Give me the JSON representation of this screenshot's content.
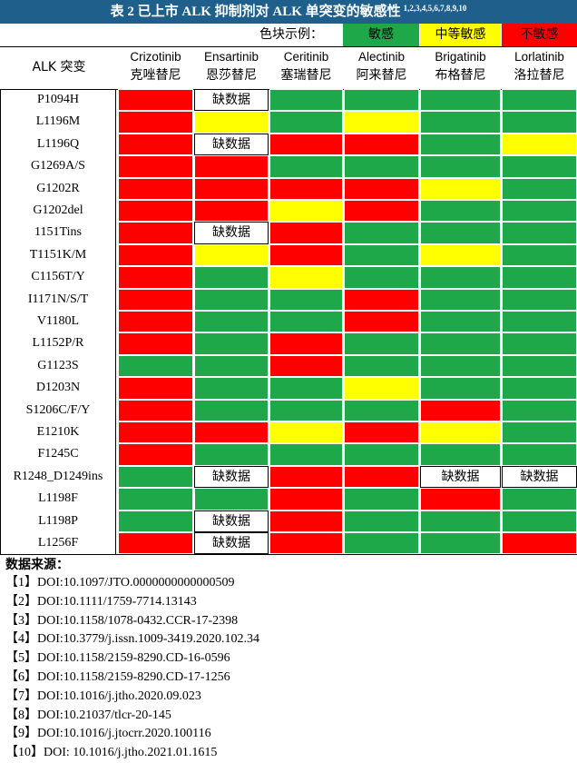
{
  "title": {
    "text": "表 2  已上市 ALK 抑制剂对 ALK 单突变的敏感性",
    "refs": "1,2,3,4,5,6,7,8,9,10"
  },
  "legend": {
    "label": "色块示例：",
    "items": [
      {
        "label": "敏感",
        "color": "#1ea84a"
      },
      {
        "label": "中等敏感",
        "color": "#ffff00"
      },
      {
        "label": "不敏感",
        "color": "#ff0000"
      }
    ]
  },
  "colors": {
    "G": "#1ea84a",
    "Y": "#ffff00",
    "R": "#ff0000",
    "W": "#ffffff"
  },
  "header": {
    "mutation_col": "ALK 突变",
    "drugs": [
      {
        "en": "Crizotinib",
        "cn": "克唑替尼"
      },
      {
        "en": "Ensartinib",
        "cn": "恩莎替尼"
      },
      {
        "en": "Ceritinib",
        "cn": "塞瑞替尼"
      },
      {
        "en": "Alectinib",
        "cn": "阿来替尼"
      },
      {
        "en": "Brigatinib",
        "cn": "布格替尼"
      },
      {
        "en": "Lorlatinib",
        "cn": "洛拉替尼"
      }
    ]
  },
  "no_data_text": "缺数据",
  "rows": [
    {
      "mutation": "P1094H",
      "cells": [
        "R",
        "W",
        "G",
        "G",
        "G",
        "G"
      ]
    },
    {
      "mutation": "L1196M",
      "cells": [
        "R",
        "Y",
        "G",
        "Y",
        "G",
        "G"
      ]
    },
    {
      "mutation": "L1196Q",
      "cells": [
        "R",
        "W",
        "R",
        "R",
        "G",
        "Y"
      ]
    },
    {
      "mutation": "G1269A/S",
      "cells": [
        "R",
        "R",
        "G",
        "G",
        "G",
        "G"
      ]
    },
    {
      "mutation": "G1202R",
      "cells": [
        "R",
        "R",
        "R",
        "R",
        "Y",
        "G"
      ]
    },
    {
      "mutation": "G1202del",
      "cells": [
        "R",
        "R",
        "Y",
        "R",
        "G",
        "G"
      ]
    },
    {
      "mutation": "1151Tins",
      "cells": [
        "R",
        "W",
        "R",
        "G",
        "G",
        "G"
      ]
    },
    {
      "mutation": "T1151K/M",
      "cells": [
        "R",
        "Y",
        "R",
        "G",
        "Y",
        "G"
      ]
    },
    {
      "mutation": "C1156T/Y",
      "cells": [
        "R",
        "G",
        "Y",
        "G",
        "G",
        "G"
      ]
    },
    {
      "mutation": "I1171N/S/T",
      "cells": [
        "R",
        "G",
        "G",
        "R",
        "G",
        "G"
      ]
    },
    {
      "mutation": "V1180L",
      "cells": [
        "R",
        "G",
        "G",
        "R",
        "G",
        "G"
      ]
    },
    {
      "mutation": "L1152P/R",
      "cells": [
        "R",
        "G",
        "R",
        "G",
        "G",
        "G"
      ]
    },
    {
      "mutation": "G1123S",
      "cells": [
        "G",
        "G",
        "R",
        "G",
        "G",
        "G"
      ]
    },
    {
      "mutation": "D1203N",
      "cells": [
        "R",
        "G",
        "G",
        "Y",
        "G",
        "G"
      ]
    },
    {
      "mutation": "S1206C/F/Y",
      "cells": [
        "R",
        "G",
        "G",
        "G",
        "R",
        "G"
      ]
    },
    {
      "mutation": "E1210K",
      "cells": [
        "R",
        "R",
        "Y",
        "R",
        "Y",
        "G"
      ]
    },
    {
      "mutation": "F1245C",
      "cells": [
        "R",
        "G",
        "G",
        "G",
        "G",
        "G"
      ]
    },
    {
      "mutation": "R1248_D1249ins",
      "cells": [
        "G",
        "W",
        "R",
        "R",
        "W",
        "W"
      ]
    },
    {
      "mutation": "L1198F",
      "cells": [
        "G",
        "G",
        "R",
        "G",
        "R",
        "G"
      ]
    },
    {
      "mutation": "L1198P",
      "cells": [
        "G",
        "W",
        "R",
        "G",
        "G",
        "G"
      ]
    },
    {
      "mutation": "L1256F",
      "cells": [
        "R",
        "W",
        "R",
        "G",
        "G",
        "R"
      ]
    }
  ],
  "sources": {
    "title": "数据来源：",
    "items": [
      "【1】DOI:10.1097/JTO.0000000000000509",
      "【2】DOI:10.1111/1759-7714.13143",
      "【3】DOI:10.1158/1078-0432.CCR-17-2398",
      "【4】DOI:10.3779/j.issn.1009-3419.2020.102.34",
      "【5】DOI:10.1158/2159-8290.CD-16-0596",
      "【6】DOI:10.1158/2159-8290.CD-17-1256",
      "【7】DOI:10.1016/j.jtho.2020.09.023",
      "【8】DOI:10.21037/tlcr-20-145",
      "【9】DOI:10.1016/j.jtocrr.2020.100116",
      "【10】DOI: 10.1016/j.jtho.2021.01.1615"
    ]
  }
}
